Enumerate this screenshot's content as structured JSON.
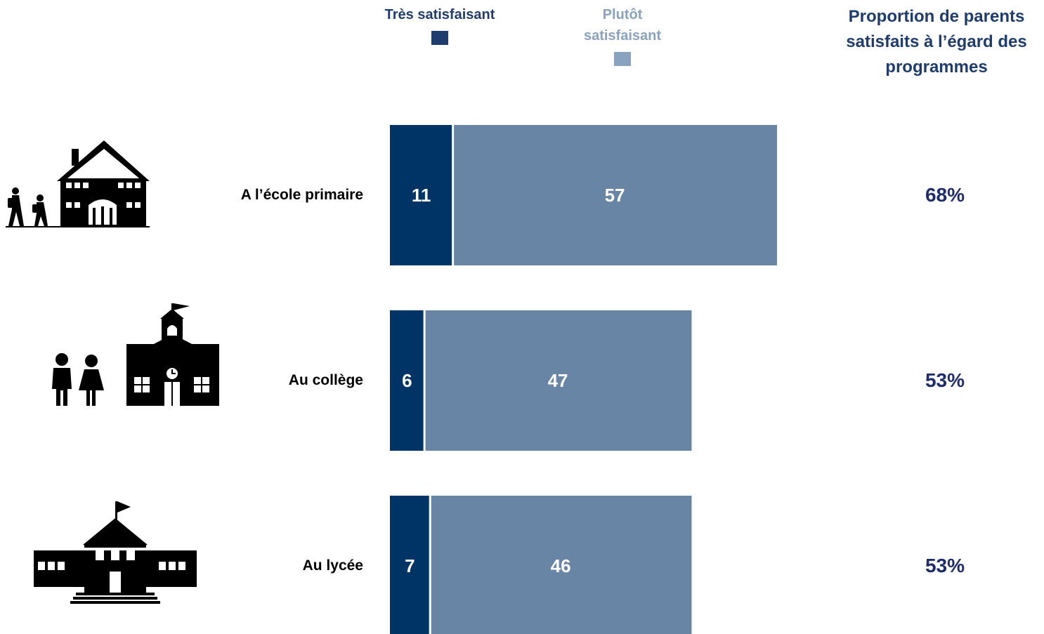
{
  "colors": {
    "tres": "#003366",
    "plutot": "#6985a5",
    "legend_tres": "#1f3c6e",
    "legend_plutot": "#8aa2bf",
    "header_text": "#1f3c6e",
    "pct_text": "#1f2d6e",
    "legend_plutot_text": "#8aa2bf",
    "value_text": "#ffffff"
  },
  "legend": {
    "tres": "Très satisfaisant",
    "plutot": "Plutôt satisfaisant"
  },
  "proportion_header": "Proportion de parents satisfaits à l’égard des programmes",
  "rows": [
    {
      "label": "A l’école primaire",
      "tres": 11,
      "plutot": 57,
      "total_label": "68%",
      "icon": "primary-school-icon"
    },
    {
      "label": "Au collège",
      "tres": 6,
      "plutot": 47,
      "total_label": "53%",
      "icon": "middle-school-icon"
    },
    {
      "label": "Au lycée",
      "tres": 7,
      "plutot": 46,
      "total_label": "53%",
      "icon": "high-school-icon"
    }
  ],
  "chart_data": {
    "type": "bar",
    "orientation": "horizontal",
    "stacked": true,
    "categories": [
      "A l’école primaire",
      "Au collège",
      "Au lycée"
    ],
    "series": [
      {
        "name": "Très satisfaisant",
        "values": [
          11,
          6,
          7
        ]
      },
      {
        "name": "Plutôt satisfaisant",
        "values": [
          57,
          47,
          46
        ]
      }
    ],
    "totals": [
      "68%",
      "53%",
      "53%"
    ],
    "title": "Proportion de parents satisfaits à l’égard des programmes",
    "legend_position": "top",
    "grid": false
  }
}
